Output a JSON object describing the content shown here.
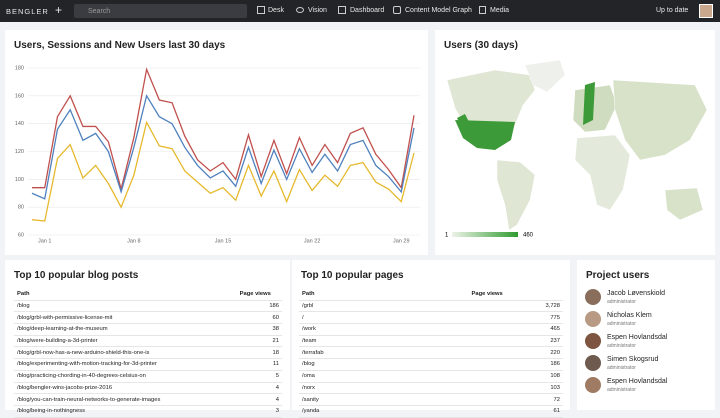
{
  "nav": {
    "brand": "BENGLER",
    "plus": "+",
    "search": "Search",
    "items": [
      "Desk",
      "Vision",
      "Dashboard",
      "Content Model Graph",
      "Media"
    ],
    "status": "Up to date"
  },
  "chart_data": {
    "type": "line",
    "title": "Users, Sessions and New Users last 30 days",
    "categories": [
      null,
      "Jan 1",
      null,
      null,
      null,
      null,
      null,
      null,
      "Jan 8",
      null,
      null,
      null,
      null,
      null,
      null,
      "Jan 15",
      null,
      null,
      null,
      null,
      null,
      null,
      "Jan 22",
      null,
      null,
      null,
      null,
      null,
      null,
      "Jan 29",
      null
    ],
    "series": [
      {
        "color": "#c0504d",
        "values": [
          94,
          94,
          145,
          160,
          138,
          138,
          127,
          93,
          130,
          179,
          157,
          155,
          131,
          114,
          106,
          112,
          100,
          132,
          102,
          128,
          104,
          130,
          110,
          125,
          112,
          133,
          137,
          118,
          107,
          94,
          146
        ]
      },
      {
        "color": "#4f81bd",
        "values": [
          90,
          86,
          136,
          150,
          128,
          133,
          120,
          91,
          123,
          160,
          145,
          140,
          123,
          110,
          101,
          106,
          95,
          123,
          97,
          121,
          100,
          122,
          105,
          118,
          106,
          125,
          128,
          110,
          102,
          91,
          137
        ]
      },
      {
        "color": "#e6b92e",
        "values": [
          71,
          70,
          115,
          125,
          101,
          110,
          97,
          80,
          103,
          141,
          124,
          122,
          106,
          98,
          90,
          94,
          85,
          110,
          88,
          106,
          84,
          107,
          92,
          103,
          95,
          110,
          112,
          98,
          93,
          84,
          119
        ]
      }
    ],
    "ylim": [
      60,
      180
    ],
    "yticks": [
      60,
      80,
      100,
      120,
      140,
      160,
      180
    ],
    "grid": true
  },
  "map": {
    "title": "Users (30 days)",
    "legend_min": "1",
    "legend_max": "460"
  },
  "blog_posts": {
    "title": "Top 10 popular blog posts",
    "columns": [
      "Path",
      "Page views"
    ],
    "rows": [
      [
        "/blog",
        "186"
      ],
      [
        "/blog/grbl-with-permissive-license-mit",
        "60"
      ],
      [
        "/blog/deep-learning-at-the-museum",
        "38"
      ],
      [
        "/blog/were-building-a-3d-printer",
        "21"
      ],
      [
        "/blog/grbl-now-has-a-new-arduino-shield-this-one-is",
        "18"
      ],
      [
        "/blog/experimenting-with-motion-tracking-for-3d-printer",
        "11"
      ],
      [
        "/blog/practicing-chording-in-40-degrees-celsius-on",
        "5"
      ],
      [
        "/blog/bengler-wins-jacobs-prize-2016",
        "4"
      ],
      [
        "/blog/you-can-train-neural-networks-to-generate-images",
        "4"
      ],
      [
        "/blog/being-in-nothingness",
        "3"
      ]
    ]
  },
  "pages": {
    "title": "Top 10 popular pages",
    "columns": [
      "Path",
      "Page views"
    ],
    "rows": [
      [
        "/grbl",
        "3,728"
      ],
      [
        "/",
        "775"
      ],
      [
        "/work",
        "465"
      ],
      [
        "/team",
        "237"
      ],
      [
        "/terrafab",
        "220"
      ],
      [
        "/blog",
        "186"
      ],
      [
        "/oma",
        "108"
      ],
      [
        "/norx",
        "103"
      ],
      [
        "/sanity",
        "72"
      ],
      [
        "/yanda",
        "61"
      ]
    ]
  },
  "users": {
    "title": "Project users",
    "list": [
      {
        "name": "Jacob Løvenskiold",
        "role": "administrator"
      },
      {
        "name": "Nicholas Klem",
        "role": "administrator"
      },
      {
        "name": "Espen Hovlandsdal",
        "role": "administrator"
      },
      {
        "name": "Simen Skogsrud",
        "role": "administrator"
      },
      {
        "name": "Espen Hovlandsdal",
        "role": "administrator"
      }
    ]
  }
}
